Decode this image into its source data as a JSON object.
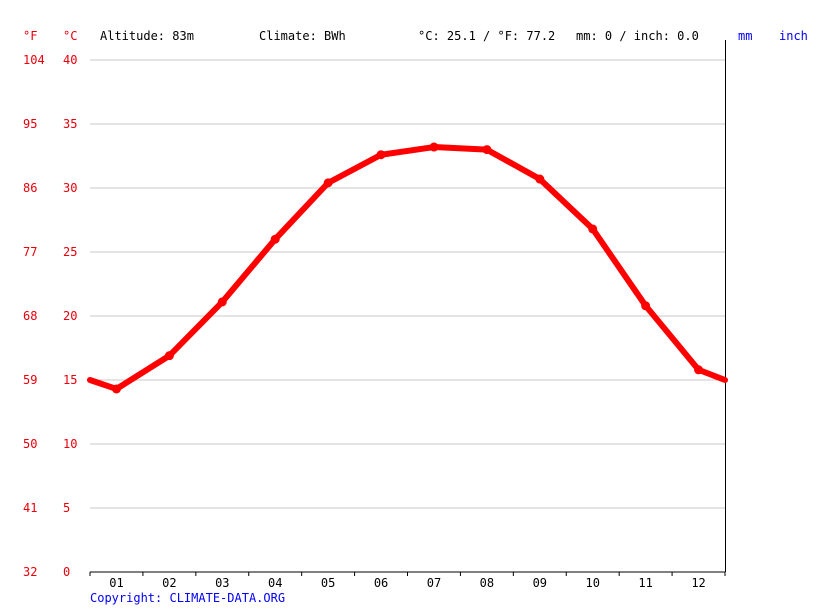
{
  "header": {
    "unit_f": "°F",
    "unit_c": "°C",
    "altitude": "Altitude: 83m",
    "climate": "Climate: BWh",
    "annual_temp": "°C: 25.1 / °F: 77.2",
    "annual_precip": "mm: 0 / inch: 0.0",
    "unit_mm": "mm",
    "unit_inch": "inch"
  },
  "copyright": "Copyright: CLIMATE-DATA.ORG",
  "colors": {
    "line": "#ff0000",
    "axis_text_red": "#e8000b",
    "axis_text_blue": "#0000ff",
    "grid": "#c8c8c8"
  },
  "chart_data": {
    "type": "line",
    "x": [
      "01",
      "02",
      "03",
      "04",
      "05",
      "06",
      "07",
      "08",
      "09",
      "10",
      "11",
      "12"
    ],
    "series": [
      {
        "values": [
          14.3,
          16.9,
          21.1,
          26.0,
          30.4,
          32.6,
          33.2,
          33.0,
          30.7,
          26.8,
          20.8,
          15.8
        ]
      }
    ],
    "ylim": [
      0,
      40
    ],
    "yticks_c": [
      "0",
      "5",
      "10",
      "15",
      "20",
      "25",
      "30",
      "35",
      "40"
    ],
    "yticks_f": [
      "32",
      "41",
      "50",
      "59",
      "68",
      "77",
      "86",
      "95",
      "104"
    ],
    "edge_values": {
      "start": 15.0,
      "end": 15.0
    },
    "grid": true
  }
}
